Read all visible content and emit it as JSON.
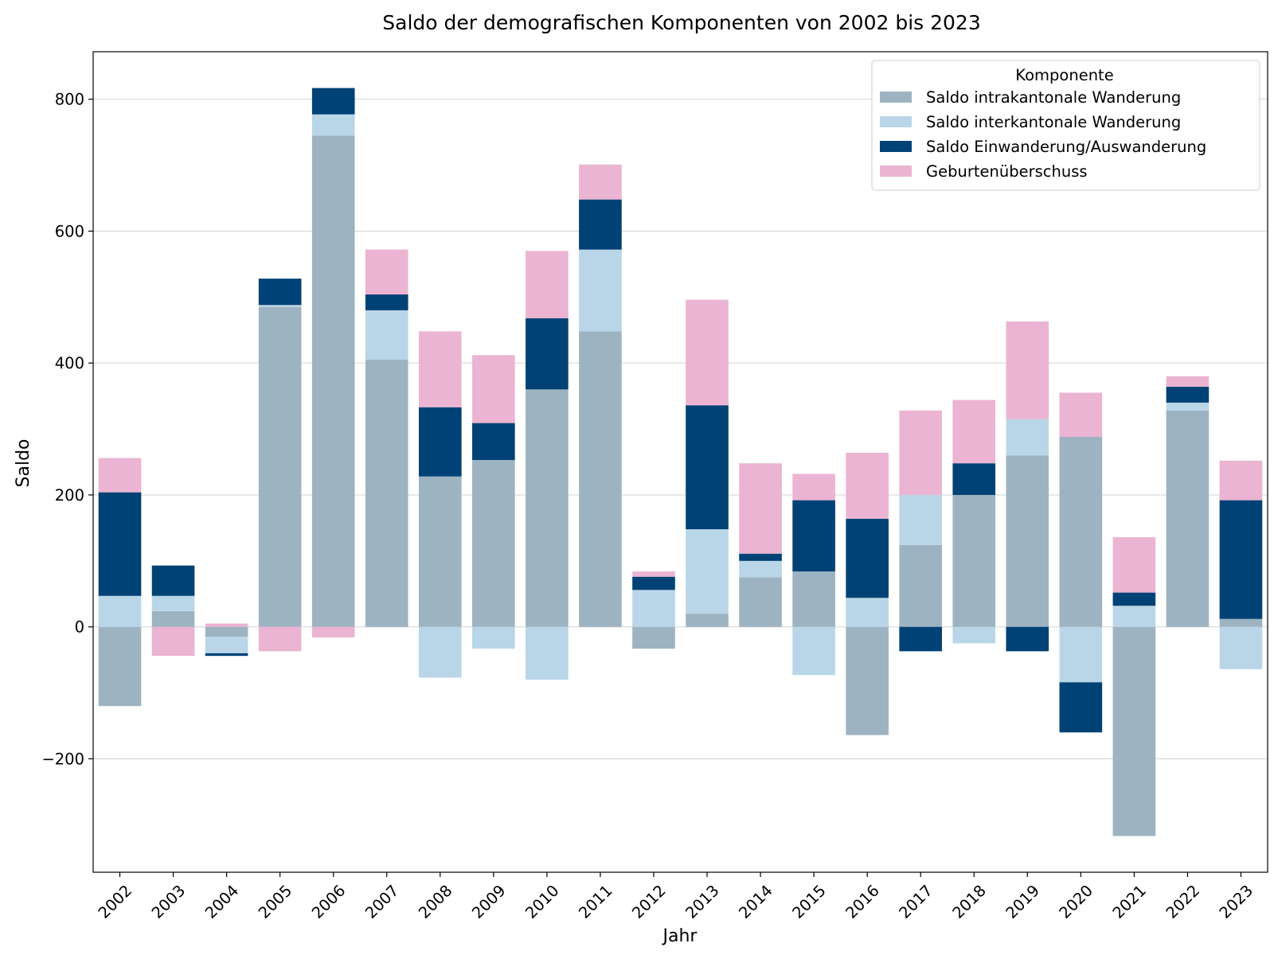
{
  "chart_data": {
    "type": "bar",
    "stacked": true,
    "title": "Saldo der demografischen Komponenten von 2002 bis 2023",
    "xlabel": "Jahr",
    "ylabel": "Saldo",
    "ylim": [
      -372,
      872
    ],
    "yticks": [
      -200,
      0,
      200,
      400,
      600,
      800
    ],
    "ytick_labels": [
      "−200",
      "0",
      "200",
      "400",
      "600",
      "800"
    ],
    "grid": true,
    "legend_title": "Komponente",
    "legend_position": "top-right",
    "categories": [
      "2002",
      "2003",
      "2004",
      "2005",
      "2006",
      "2007",
      "2008",
      "2009",
      "2010",
      "2011",
      "2012",
      "2013",
      "2014",
      "2015",
      "2016",
      "2017",
      "2018",
      "2019",
      "2020",
      "2021",
      "2022",
      "2023"
    ],
    "series": [
      {
        "name": "Saldo intrakantonale Wanderung",
        "color": "#9db3c1",
        "values": [
          -120,
          24,
          -15,
          485,
          745,
          405,
          228,
          253,
          360,
          448,
          -33,
          20,
          75,
          84,
          -164,
          124,
          200,
          260,
          288,
          -317,
          328,
          12
        ]
      },
      {
        "name": "Saldo interkantonale Wanderung",
        "color": "#b9d6e8",
        "values": [
          47,
          23,
          -25,
          3,
          32,
          75,
          -77,
          -33,
          -80,
          124,
          56,
          128,
          25,
          -73,
          44,
          76,
          -25,
          55,
          -84,
          32,
          12,
          -64
        ]
      },
      {
        "name": "Saldo Einwanderung/Auswanderung",
        "color": "#004275",
        "values": [
          157,
          46,
          -4,
          40,
          40,
          24,
          105,
          56,
          108,
          76,
          20,
          188,
          11,
          108,
          120,
          -37,
          48,
          -37,
          -76,
          20,
          24,
          180
        ]
      },
      {
        "name": "Geburtenüberschuss",
        "color": "#ebb4d2",
        "values": [
          52,
          -44,
          5,
          -37,
          -16,
          68,
          115,
          103,
          102,
          53,
          8,
          160,
          137,
          40,
          100,
          128,
          96,
          148,
          67,
          84,
          16,
          60
        ]
      }
    ]
  }
}
